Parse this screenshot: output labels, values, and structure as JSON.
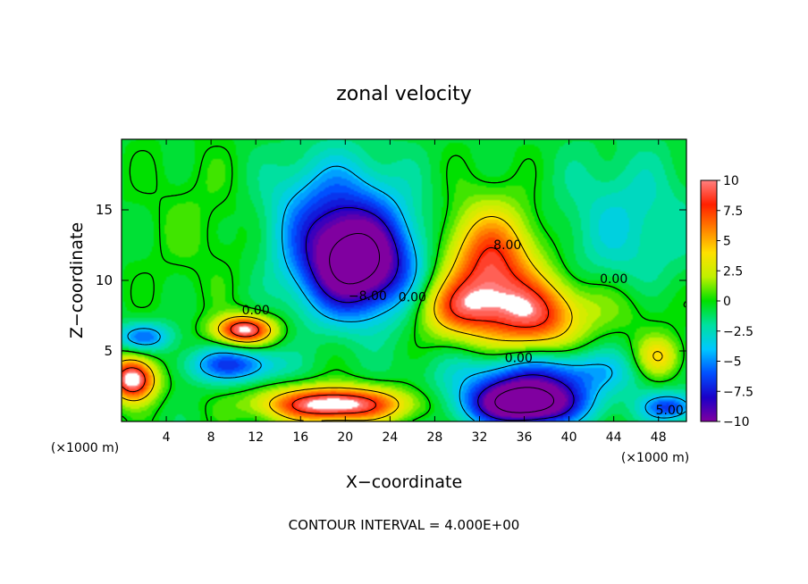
{
  "chart_data": {
    "type": "heatmap",
    "title": "zonal velocity",
    "xlabel": "X−coordinate",
    "ylabel": "Z−coordinate",
    "x_unit_left": "(×1000 m)",
    "x_unit_right": "(×1000 m)",
    "xlim": [
      0,
      50.5
    ],
    "ylim": [
      0,
      20
    ],
    "x_ticks": [
      4,
      8,
      12,
      16,
      20,
      24,
      28,
      32,
      36,
      40,
      44,
      48
    ],
    "y_ticks": [
      5,
      10,
      15
    ],
    "colorbar": {
      "range": [
        -10,
        10
      ],
      "tick_values": [
        10,
        7.5,
        5,
        2.5,
        0,
        -2.5,
        -5,
        -7.5,
        -10
      ],
      "tick_labels": [
        "10",
        "7.5",
        "5",
        "2.5",
        "0",
        "−2.5",
        "−5",
        "−7.5",
        "−10"
      ],
      "scale": [
        "#8000a0",
        "#1a00c8",
        "#0050ff",
        "#00c8ff",
        "#00e0a0",
        "#00e000",
        "#c0f000",
        "#ffe000",
        "#ff8000",
        "#ff2000",
        "#ff8080"
      ]
    },
    "features": [
      {
        "x": 21,
        "z": 11,
        "value": -12,
        "rx": 5,
        "rz": 3.5
      },
      {
        "x": 19,
        "z": 15,
        "value": -5,
        "rx": 6,
        "rz": 4
      },
      {
        "x": 33,
        "z": 11,
        "value": 9,
        "rx": 4,
        "rz": 4
      },
      {
        "x": 37,
        "z": 7.5,
        "value": 8,
        "rx": 4,
        "rz": 2.5
      },
      {
        "x": 30,
        "z": 8,
        "value": 6,
        "rx": 3.5,
        "rz": 2
      },
      {
        "x": 36,
        "z": 1.3,
        "value": -14,
        "rx": 5,
        "rz": 1.6
      },
      {
        "x": 38,
        "z": 3.5,
        "value": -5,
        "rx": 8,
        "rz": 1.6
      },
      {
        "x": 19,
        "z": 1.2,
        "value": 12,
        "rx": 6,
        "rz": 1.2
      },
      {
        "x": 11,
        "z": 6.5,
        "value": 11,
        "rx": 2.5,
        "rz": 1
      },
      {
        "x": 1,
        "z": 3,
        "value": 12,
        "rx": 2,
        "rz": 1.5
      },
      {
        "x": 10,
        "z": 4,
        "value": -6,
        "rx": 4,
        "rz": 1.2
      },
      {
        "x": 2,
        "z": 6,
        "value": -5,
        "rx": 2.5,
        "rz": 1
      },
      {
        "x": 48,
        "z": 4.5,
        "value": 5,
        "rx": 2,
        "rz": 1.5
      },
      {
        "x": 49,
        "z": 1,
        "value": -6,
        "rx": 2.5,
        "rz": 1
      },
      {
        "x": 45,
        "z": 14,
        "value": -2.5,
        "rx": 6,
        "rz": 5
      },
      {
        "x": 8,
        "z": 14,
        "value": 1,
        "rx": 6,
        "rz": 5
      },
      {
        "x": 44,
        "z": 8,
        "value": 1.5,
        "rx": 5,
        "rz": 2
      }
    ],
    "contour_labels": [
      {
        "text": "8.00",
        "x": 34.5,
        "z": 12.2
      },
      {
        "text": "−8.00",
        "x": 22,
        "z": 8.6
      },
      {
        "text": "0.00",
        "x": 26,
        "z": 8.5
      },
      {
        "text": "0.00",
        "x": 12,
        "z": 7.6
      },
      {
        "text": "0.00",
        "x": 44,
        "z": 9.8
      },
      {
        "text": "0.00",
        "x": 35.5,
        "z": 4.2
      },
      {
        "text": "5.00",
        "x": 49,
        "z": 0.5
      }
    ],
    "annotation": "CONTOUR INTERVAL = 4.000E+00"
  }
}
